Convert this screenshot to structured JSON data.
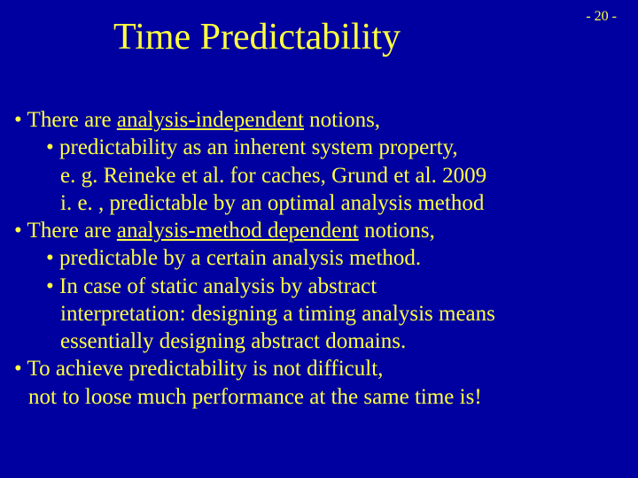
{
  "colors": {
    "background": "#0000a0",
    "text": "#ffff40"
  },
  "typography": {
    "family": "Comic Sans MS",
    "title_fontsize": 42,
    "body_fontsize": 25,
    "pagenum_fontsize": 16
  },
  "page": {
    "number": "- 20 -",
    "title": "Time Predictability"
  },
  "lines": {
    "l1a": "• There are ",
    "l1b": "analysis-independent",
    "l1c": " notions,",
    "l2": "• predictability as an inherent system property,",
    "l3": "e. g. Reineke et al. for caches, Grund et al. 2009",
    "l4": "i. e. , predictable by an optimal analysis method",
    "l5a": "• There are ",
    "l5b": "analysis-method dependent",
    "l5c": " notions,",
    "l6": "• predictable by a certain analysis method.",
    "l7": "• In case of static analysis by abstract",
    "l8": "interpretation: designing a timing analysis means",
    "l9": "essentially designing abstract domains.",
    "l10": "• To achieve predictability is not difficult,",
    "l11": "not to loose much performance at the same time is!"
  }
}
